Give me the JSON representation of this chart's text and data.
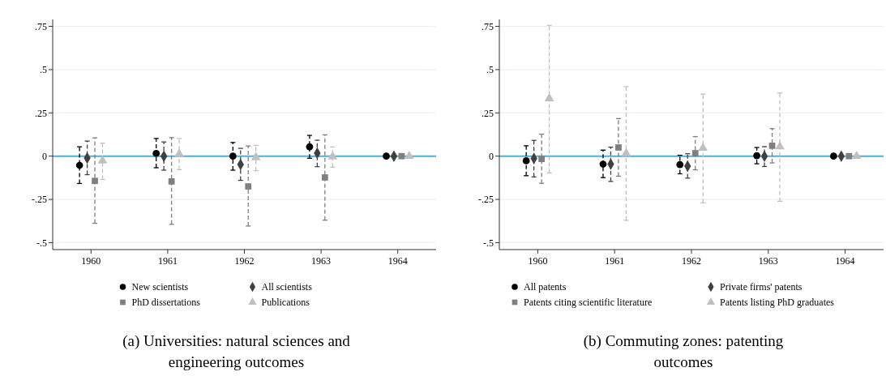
{
  "chart_data": [
    {
      "type": "scatter",
      "title": "(a) Universities: natural sciences and engineering outcomes",
      "categories": [
        "1960",
        "1961",
        "1962",
        "1963",
        "1964"
      ],
      "ylim": [
        -0.54,
        0.79
      ],
      "yticks": [
        {
          "value": -0.5,
          "label": "-.5"
        },
        {
          "value": -0.25,
          "label": "-.25"
        },
        0,
        {
          "value": 0.25,
          "label": ".25"
        },
        {
          "value": 0.5,
          "label": ".5"
        },
        {
          "value": 0.75,
          "label": ".75"
        }
      ],
      "grid": "y",
      "legend": "bottom",
      "ref_lines": [
        {
          "axis": "y",
          "value": 0,
          "color": "#4fb0d4"
        }
      ],
      "series": [
        {
          "name": "New scientists",
          "color": "#000000",
          "marker": "circle",
          "values": [
            -0.053,
            0.016,
            0,
            0.054,
            0
          ],
          "errors": [
            [
              -0.158,
              0.054
            ],
            [
              -0.067,
              0.102
            ],
            [
              -0.081,
              0.079
            ],
            [
              -0.012,
              0.12
            ],
            null
          ]
        },
        {
          "name": "All scientists",
          "color": "#404040",
          "marker": "diamond",
          "values": [
            -0.011,
            0,
            -0.048,
            0.017,
            0
          ],
          "errors": [
            [
              -0.107,
              0.087
            ],
            [
              -0.081,
              0.082
            ],
            [
              -0.14,
              0.045
            ],
            [
              -0.061,
              0.092
            ],
            null
          ]
        },
        {
          "name": "PhD dissertations",
          "color": "#7f7f7f",
          "marker": "square",
          "values": [
            -0.143,
            -0.146,
            -0.175,
            -0.123,
            0
          ],
          "errors": [
            [
              -0.388,
              0.106
            ],
            [
              -0.394,
              0.107
            ],
            [
              -0.404,
              0.059
            ],
            [
              -0.37,
              0.123
            ],
            null
          ]
        },
        {
          "name": "Publications",
          "color": "#c0c0c0",
          "marker": "triangle",
          "values": [
            -0.026,
            0.012,
            -0.008,
            -0.003,
            0
          ],
          "errors": [
            [
              -0.135,
              0.075
            ],
            [
              -0.078,
              0.102
            ],
            [
              -0.084,
              0.062
            ],
            [
              -0.064,
              0.053
            ],
            null
          ]
        }
      ]
    },
    {
      "type": "scatter",
      "title": "(b) Commuting zones: patenting outcomes",
      "categories": [
        "1960",
        "1961",
        "1962",
        "1963",
        "1964"
      ],
      "ylim": [
        -0.54,
        0.79
      ],
      "yticks": [
        {
          "value": -0.5,
          "label": "-.5"
        },
        {
          "value": -0.25,
          "label": "-.25"
        },
        0,
        {
          "value": 0.25,
          "label": ".25"
        },
        {
          "value": 0.5,
          "label": ".5"
        },
        {
          "value": 0.75,
          "label": ".75"
        }
      ],
      "grid": "y",
      "legend": "bottom",
      "ref_lines": [
        {
          "axis": "y",
          "value": 0,
          "color": "#4fb0d4"
        }
      ],
      "series": [
        {
          "name": "All patents",
          "color": "#000000",
          "marker": "circle",
          "values": [
            -0.027,
            -0.046,
            -0.049,
            0.003,
            0
          ],
          "errors": [
            [
              -0.113,
              0.06
            ],
            [
              -0.124,
              0.035
            ],
            [
              -0.102,
              0.005
            ],
            [
              -0.044,
              0.05
            ],
            null
          ]
        },
        {
          "name": "Private firms' patents",
          "color": "#404040",
          "marker": "diamond",
          "values": [
            -0.013,
            -0.046,
            -0.058,
            0,
            0
          ],
          "errors": [
            [
              -0.12,
              0.091
            ],
            [
              -0.146,
              0.052
            ],
            [
              -0.127,
              0.014
            ],
            [
              -0.06,
              0.055
            ],
            null
          ]
        },
        {
          "name": "Patents citing scientific literature",
          "color": "#7f7f7f",
          "marker": "square",
          "values": [
            -0.016,
            0.05,
            0.017,
            0.06,
            0
          ],
          "errors": [
            [
              -0.157,
              0.127
            ],
            [
              -0.116,
              0.217
            ],
            [
              -0.079,
              0.113
            ],
            [
              -0.039,
              0.159
            ],
            null
          ]
        },
        {
          "name": "Patents listing PhD graduates",
          "color": "#c0c0c0",
          "marker": "triangle",
          "values": [
            0.333,
            0.016,
            0.047,
            0.055,
            0
          ],
          "errors": [
            [
              -0.097,
              0.756
            ],
            [
              -0.371,
              0.401
            ],
            [
              -0.27,
              0.358
            ],
            [
              -0.261,
              0.365
            ],
            null
          ]
        }
      ]
    }
  ]
}
